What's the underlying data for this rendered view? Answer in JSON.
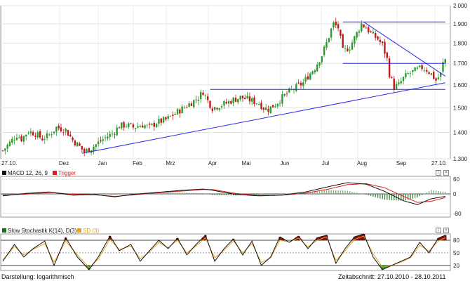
{
  "footer": {
    "left": "Darstellung: logarithmisch",
    "right": "Zeitabschnitt: 27.10.2010 - 28.10.2011"
  },
  "colors": {
    "up": "#2e9b2e",
    "down": "#c01818",
    "trend": "#2a2ae8",
    "macd": "#111111",
    "trigger": "#e02020",
    "stoch_k": "#111111",
    "stoch_d": "#e8a020",
    "overbought_fill": "#8b0a0a",
    "oversold_fill": "#1f8a1f"
  },
  "chart_data": [
    {
      "type": "candlestick",
      "log_scale": true,
      "x_ticks": [
        "27.10.",
        "Dez",
        "Jan",
        "Feb",
        "Mrz",
        "Apr",
        "Mai",
        "Jun",
        "Jul",
        "Aug",
        "Sep",
        "27.10."
      ],
      "y_ticks": [
        "2.000",
        "1.900",
        "1.800",
        "1.700",
        "1.600",
        "1.500",
        "1.400",
        "1.300"
      ],
      "ylim": [
        1300,
        2000
      ],
      "close_path": [
        [
          0,
          1330
        ],
        [
          3,
          1360
        ],
        [
          6,
          1390
        ],
        [
          8,
          1375
        ],
        [
          11,
          1405
        ],
        [
          14,
          1395
        ],
        [
          17,
          1375
        ],
        [
          20,
          1390
        ],
        [
          23,
          1420
        ],
        [
          27,
          1410
        ],
        [
          30,
          1370
        ],
        [
          33,
          1345
        ],
        [
          35,
          1325
        ],
        [
          38,
          1340
        ],
        [
          41,
          1360
        ],
        [
          44,
          1380
        ],
        [
          47,
          1395
        ],
        [
          50,
          1425
        ],
        [
          53,
          1430
        ],
        [
          56,
          1420
        ],
        [
          60,
          1430
        ],
        [
          63,
          1420
        ],
        [
          66,
          1440
        ],
        [
          70,
          1450
        ],
        [
          73,
          1470
        ],
        [
          76,
          1490
        ],
        [
          79,
          1510
        ],
        [
          82,
          1530
        ],
        [
          84,
          1545
        ],
        [
          86,
          1570
        ],
        [
          88,
          1530
        ],
        [
          90,
          1500
        ],
        [
          93,
          1510
        ],
        [
          96,
          1520
        ],
        [
          99,
          1535
        ],
        [
          102,
          1545
        ],
        [
          104,
          1540
        ],
        [
          107,
          1530
        ],
        [
          110,
          1520
        ],
        [
          112,
          1500
        ],
        [
          114,
          1495
        ],
        [
          117,
          1515
        ],
        [
          120,
          1545
        ],
        [
          123,
          1570
        ],
        [
          126,
          1590
        ],
        [
          129,
          1610
        ],
        [
          131,
          1640
        ],
        [
          134,
          1680
        ],
        [
          137,
          1740
        ],
        [
          139,
          1800
        ],
        [
          141,
          1870
        ],
        [
          142,
          1900
        ],
        [
          144,
          1880
        ],
        [
          146,
          1760
        ],
        [
          149,
          1780
        ],
        [
          152,
          1850
        ],
        [
          154,
          1900
        ],
        [
          156,
          1880
        ],
        [
          158,
          1850
        ],
        [
          161,
          1820
        ],
        [
          163,
          1790
        ],
        [
          165,
          1720
        ],
        [
          166,
          1650
        ],
        [
          168,
          1590
        ],
        [
          170,
          1600
        ],
        [
          172,
          1630
        ],
        [
          174,
          1650
        ],
        [
          176,
          1660
        ],
        [
          178,
          1670
        ],
        [
          180,
          1680
        ],
        [
          182,
          1670
        ],
        [
          184,
          1650
        ],
        [
          186,
          1620
        ],
        [
          188,
          1650
        ],
        [
          189,
          1700
        ],
        [
          190,
          1720
        ]
      ],
      "trendlines": [
        {
          "from": [
            34,
            1320
          ],
          "to": [
            190,
            1610
          ]
        },
        {
          "from": [
            89,
            1580
          ],
          "to": [
            190,
            1580
          ]
        },
        {
          "from": [
            146,
            1700
          ],
          "to": [
            190,
            1700
          ]
        },
        {
          "from": [
            146,
            1910
          ],
          "to": [
            190,
            1910
          ]
        },
        {
          "from": [
            155,
            1910
          ],
          "to": [
            190,
            1640
          ]
        }
      ]
    },
    {
      "type": "line",
      "legend": [
        "MACD 12, 26, 9",
        "Trigger"
      ],
      "y_ticks": [
        "60",
        "0",
        "-80"
      ],
      "ylim": [
        -95,
        72
      ],
      "series": [
        {
          "name": "MACD 12, 26, 9",
          "values": [
            [
              0,
              -8
            ],
            [
              10,
              2
            ],
            [
              20,
              8
            ],
            [
              30,
              -5
            ],
            [
              40,
              -3
            ],
            [
              48,
              -12
            ],
            [
              56,
              -2
            ],
            [
              66,
              6
            ],
            [
              76,
              14
            ],
            [
              86,
              20
            ],
            [
              90,
              15
            ],
            [
              100,
              -2
            ],
            [
              110,
              -8
            ],
            [
              120,
              -5
            ],
            [
              130,
              8
            ],
            [
              140,
              30
            ],
            [
              148,
              46
            ],
            [
              156,
              40
            ],
            [
              164,
              10
            ],
            [
              172,
              -28
            ],
            [
              178,
              -44
            ],
            [
              184,
              -20
            ],
            [
              190,
              -10
            ]
          ]
        },
        {
          "name": "Trigger",
          "values": [
            [
              0,
              -5
            ],
            [
              10,
              -1
            ],
            [
              20,
              6
            ],
            [
              30,
              -1
            ],
            [
              40,
              -4
            ],
            [
              48,
              -10
            ],
            [
              56,
              -4
            ],
            [
              66,
              4
            ],
            [
              76,
              11
            ],
            [
              86,
              18
            ],
            [
              90,
              18
            ],
            [
              100,
              2
            ],
            [
              110,
              -6
            ],
            [
              120,
              -5
            ],
            [
              130,
              3
            ],
            [
              140,
              20
            ],
            [
              148,
              38
            ],
            [
              156,
              42
            ],
            [
              164,
              25
            ],
            [
              172,
              -10
            ],
            [
              178,
              -35
            ],
            [
              184,
              -30
            ],
            [
              190,
              -15
            ]
          ]
        }
      ],
      "histogram": "series_difference"
    },
    {
      "type": "line",
      "legend": [
        "Slow Stochastik K(14), D(3)",
        "SD (3)"
      ],
      "y_ticks": [
        "80",
        "50",
        "20"
      ],
      "ylim": [
        8,
        95
      ],
      "levels": [
        80,
        50,
        20
      ],
      "series": [
        {
          "name": "Slow Stochastik K(14), D(3)",
          "values": [
            [
              0,
              30
            ],
            [
              5,
              70
            ],
            [
              9,
              40
            ],
            [
              13,
              60
            ],
            [
              18,
              78
            ],
            [
              22,
              20
            ],
            [
              27,
              86
            ],
            [
              32,
              40
            ],
            [
              37,
              10
            ],
            [
              41,
              40
            ],
            [
              46,
              90
            ],
            [
              50,
              55
            ],
            [
              55,
              70
            ],
            [
              59,
              30
            ],
            [
              63,
              55
            ],
            [
              67,
              80
            ],
            [
              71,
              60
            ],
            [
              75,
              85
            ],
            [
              79,
              45
            ],
            [
              83,
              70
            ],
            [
              87,
              92
            ],
            [
              91,
              30
            ],
            [
              95,
              60
            ],
            [
              99,
              83
            ],
            [
              103,
              45
            ],
            [
              107,
              78
            ],
            [
              111,
              20
            ],
            [
              115,
              40
            ],
            [
              119,
              88
            ],
            [
              123,
              75
            ],
            [
              127,
              90
            ],
            [
              131,
              60
            ],
            [
              135,
              86
            ],
            [
              139,
              92
            ],
            [
              143,
              25
            ],
            [
              147,
              60
            ],
            [
              151,
              88
            ],
            [
              155,
              95
            ],
            [
              159,
              40
            ],
            [
              163,
              10
            ],
            [
              167,
              20
            ],
            [
              171,
              30
            ],
            [
              175,
              40
            ],
            [
              179,
              75
            ],
            [
              183,
              50
            ],
            [
              187,
              85
            ],
            [
              190,
              92
            ]
          ]
        },
        {
          "name": "SD (3)",
          "values": [
            [
              0,
              33
            ],
            [
              5,
              65
            ],
            [
              9,
              45
            ],
            [
              13,
              58
            ],
            [
              18,
              72
            ],
            [
              22,
              28
            ],
            [
              27,
              78
            ],
            [
              32,
              45
            ],
            [
              37,
              15
            ],
            [
              41,
              35
            ],
            [
              46,
              82
            ],
            [
              50,
              58
            ],
            [
              55,
              66
            ],
            [
              59,
              36
            ],
            [
              63,
              52
            ],
            [
              67,
              75
            ],
            [
              71,
              62
            ],
            [
              75,
              80
            ],
            [
              79,
              50
            ],
            [
              83,
              66
            ],
            [
              87,
              86
            ],
            [
              91,
              38
            ],
            [
              95,
              56
            ],
            [
              99,
              78
            ],
            [
              103,
              50
            ],
            [
              107,
              72
            ],
            [
              111,
              27
            ],
            [
              115,
              38
            ],
            [
              119,
              80
            ],
            [
              123,
              76
            ],
            [
              127,
              85
            ],
            [
              131,
              64
            ],
            [
              135,
              80
            ],
            [
              139,
              88
            ],
            [
              143,
              32
            ],
            [
              147,
              55
            ],
            [
              151,
              82
            ],
            [
              155,
              90
            ],
            [
              159,
              48
            ],
            [
              163,
              16
            ],
            [
              167,
              20
            ],
            [
              171,
              28
            ],
            [
              175,
              38
            ],
            [
              179,
              68
            ],
            [
              183,
              54
            ],
            [
              187,
              78
            ],
            [
              190,
              86
            ]
          ]
        }
      ]
    }
  ]
}
